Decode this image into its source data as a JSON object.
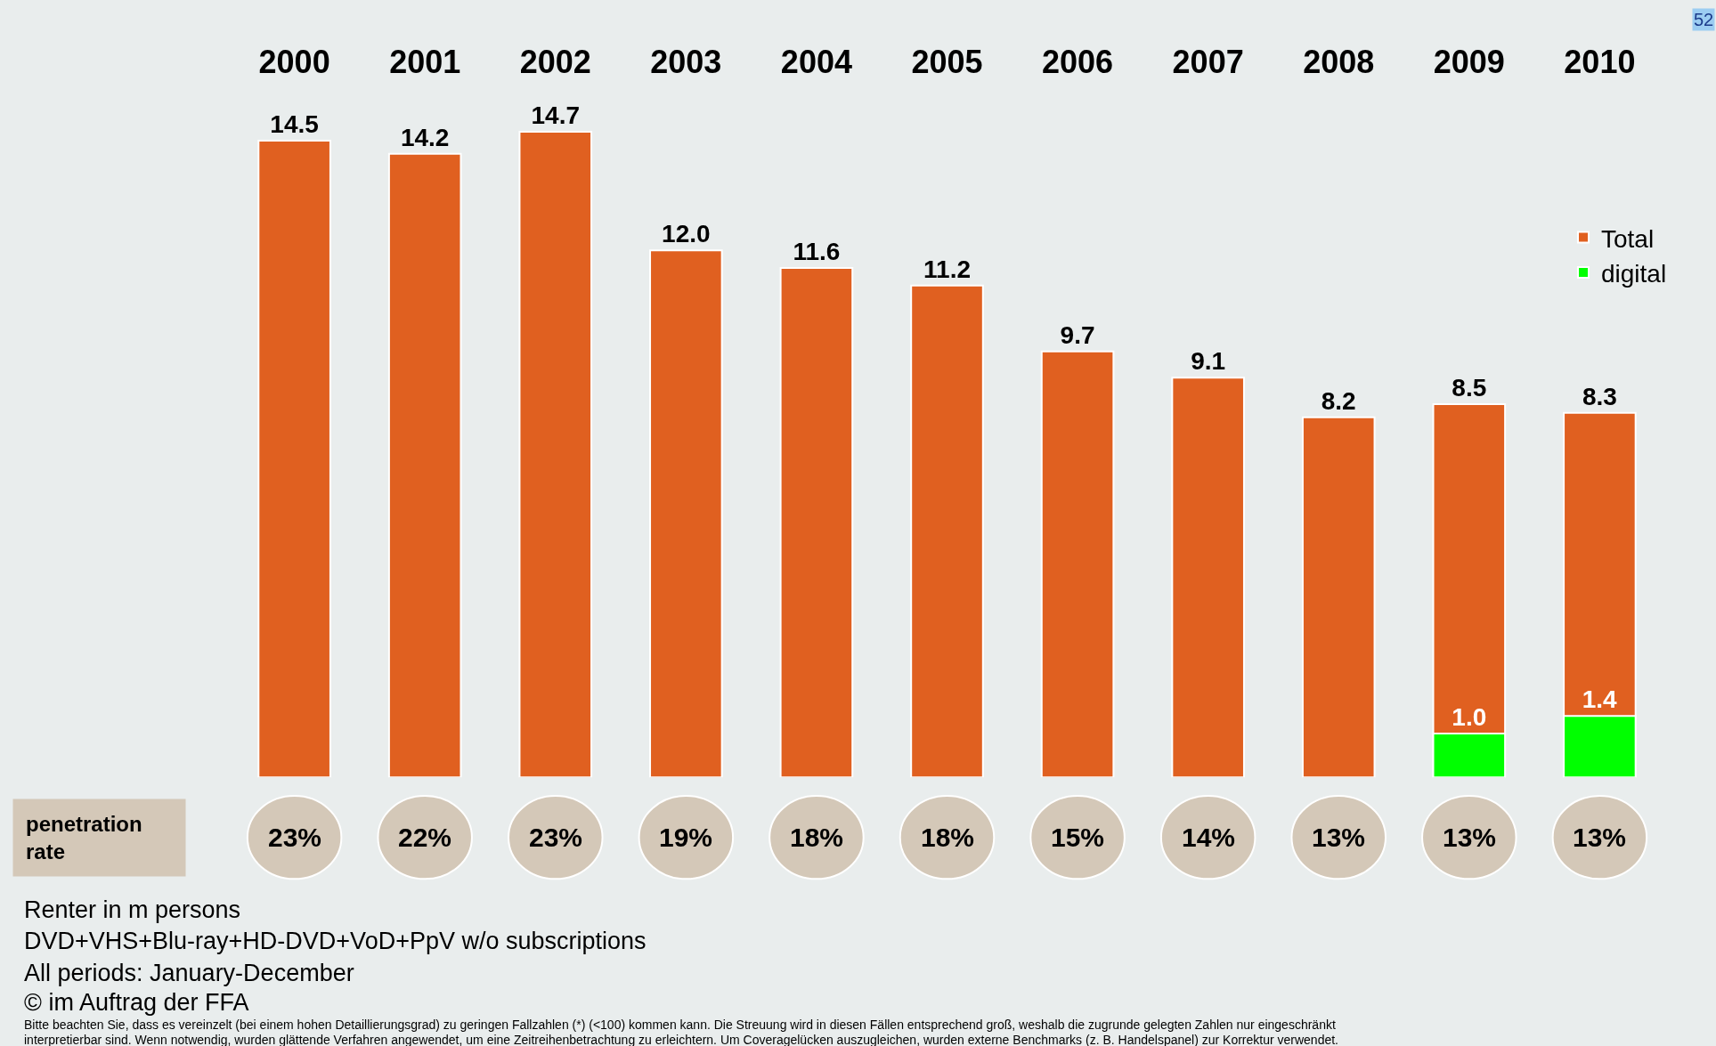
{
  "chart_data": {
    "type": "bar",
    "categories": [
      "2000",
      "2001",
      "2002",
      "2003",
      "2004",
      "2005",
      "2006",
      "2007",
      "2008",
      "2009",
      "2010"
    ],
    "series": [
      {
        "name": "Total",
        "color": "#e06020",
        "values": [
          14.5,
          14.2,
          14.7,
          12.0,
          11.6,
          11.2,
          9.7,
          9.1,
          8.2,
          8.5,
          8.3
        ],
        "value_labels": [
          "14.5",
          "14.2",
          "14.7",
          "12.0",
          "11.6",
          "11.2",
          "9.7",
          "9.1",
          "8.2",
          "8.5",
          "8.3"
        ]
      },
      {
        "name": "digital",
        "color": "#00ff00",
        "values": [
          null,
          null,
          null,
          null,
          null,
          null,
          null,
          null,
          null,
          1.0,
          1.4
        ],
        "value_labels": [
          null,
          null,
          null,
          null,
          null,
          null,
          null,
          null,
          null,
          "1.0",
          "1.4"
        ]
      }
    ],
    "legend": "top right",
    "annotations": [
      "52",
      "penetration rate",
      "23%",
      "22%",
      "23%",
      "19%",
      "18%",
      "18%",
      "15%",
      "14%",
      "13%",
      "13%",
      "13%",
      "Renter in m persons",
      "DVD+VHS+Blu-ray+HD-DVD+VoD+PpV w/o subscriptions",
      "All periods: January-December",
      "© im Auftrag der FFA",
      "Bitte beachten Sie, dass es vereinzelt (bei einem hohen Detaillierungsgrad) zu geringen Fallzahlen (*) (<100) kommen kann. Die Streuung wird in diesen Fällen entsprechend groß, weshalb die zugrunde gelegten Zahlen nur eingeschränkt",
      "interpretierbar sind. Wenn notwendig, wurden glättende Verfahren angewendet, um eine Zeitreihenbetrachtung zu erleichtern. Um Coveragelücken auszugleichen, wurden externe Benchmarks (z. B. Handelspanel) zur Korrektur verwendet."
    ]
  }
}
